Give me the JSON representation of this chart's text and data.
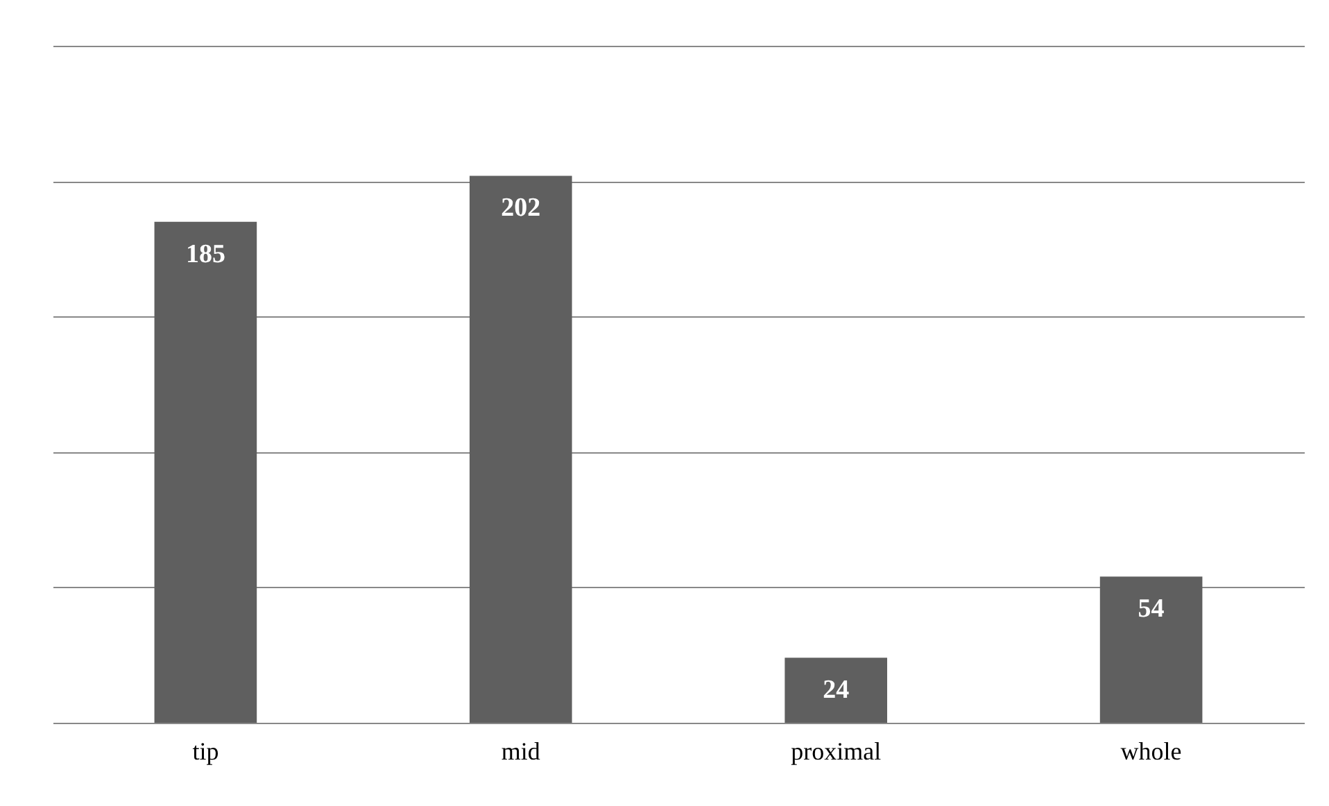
{
  "chart_data": {
    "type": "bar",
    "categories": [
      "tip",
      "mid",
      "proximal",
      "whole"
    ],
    "values": [
      185,
      202,
      24,
      54
    ],
    "color": "#5f5f5f",
    "data_labels": true,
    "ylim": [
      0,
      250
    ],
    "yticks": [
      {
        "value": 0,
        "label": null
      },
      {
        "value": 50,
        "label": null
      },
      {
        "value": 100,
        "label": null
      },
      {
        "value": 150,
        "label": null
      },
      {
        "value": 200,
        "label": null
      },
      {
        "value": 250,
        "label": null
      }
    ],
    "grid": "y",
    "tick_labels": "x"
  }
}
